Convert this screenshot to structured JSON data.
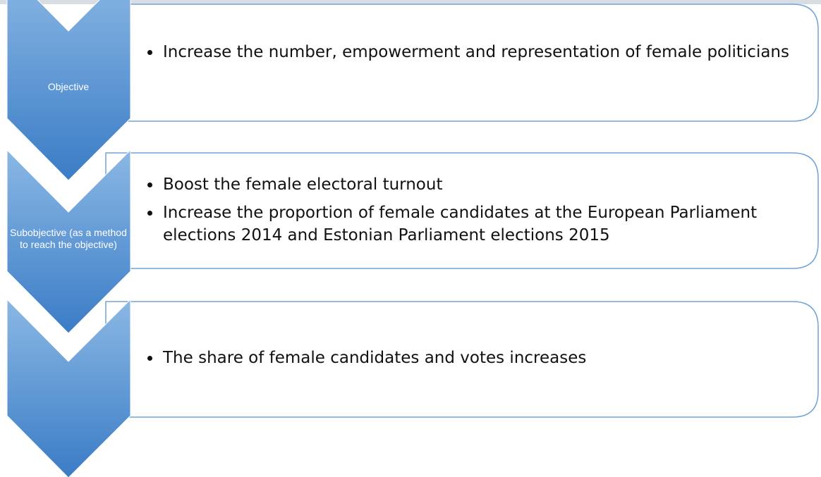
{
  "steps": [
    {
      "label": "Objective",
      "bullets": [
        "Increase the number, empowerment and representation of female politicians"
      ]
    },
    {
      "label": "Subobjective (as a method to reach the objective)",
      "bullets": [
        "Boost the female electoral turnout",
        "Increase the proportion of female candidates at the European Parliament elections 2014 and Estonian Parliament elections 2015"
      ]
    },
    {
      "bullets": [
        "The share of female candidates and votes increases"
      ]
    }
  ]
}
